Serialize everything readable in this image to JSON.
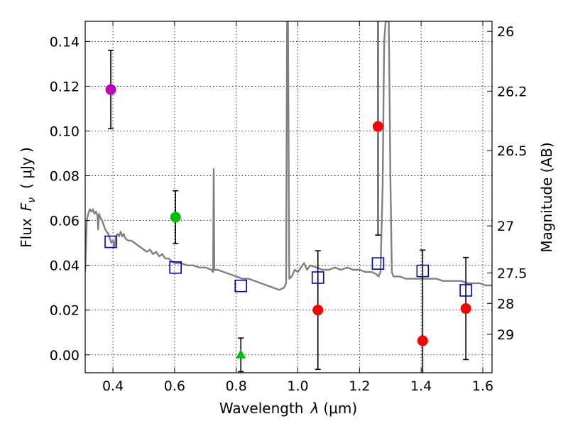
{
  "chart_data": {
    "type": "scatter",
    "xlabel_prefix": "Wavelength",
    "xlabel_symbol": "λ",
    "xlabel_unit": "(μm)",
    "ylabel_prefix": "Flux",
    "ylabel_symbol": "F",
    "ylabel_subscript": "ν",
    "ylabel_unit": "( μJy )",
    "y2label": "Magnitude (AB)",
    "xlim": [
      0.31,
      1.63
    ],
    "ylim": [
      -0.008,
      0.149
    ],
    "grid": true,
    "x_ticks": [
      0.4,
      0.6,
      0.8,
      1.0,
      1.2,
      1.4,
      1.6
    ],
    "x_tick_labels": [
      "0.4",
      "0.6",
      "0.8",
      "1.0",
      "1.2",
      "1.4",
      "1.6"
    ],
    "y_ticks": [
      0.0,
      0.02,
      0.04,
      0.06,
      0.08,
      0.1,
      0.12,
      0.14
    ],
    "y_tick_labels": [
      "0.00",
      "0.02",
      "0.04",
      "0.06",
      "0.08",
      "0.10",
      "0.12",
      "0.14"
    ],
    "y2_ticks": [
      {
        "flux": 0.1445,
        "label": "26"
      },
      {
        "flux": 0.1178,
        "label": "26.2"
      },
      {
        "flux": 0.0912,
        "label": "26.5"
      },
      {
        "flux": 0.0576,
        "label": "27"
      },
      {
        "flux": 0.0366,
        "label": "27.5"
      },
      {
        "flux": 0.023,
        "label": "28"
      },
      {
        "flux": 0.0092,
        "label": "29"
      }
    ],
    "observations": [
      {
        "x": 0.393,
        "y": 0.1185,
        "err": 0.0175,
        "color": "#bf00bf",
        "marker": "circle"
      },
      {
        "x": 0.603,
        "y": 0.0615,
        "err": 0.0118,
        "color": "#00bf00",
        "marker": "circle"
      },
      {
        "x": 0.815,
        "y": 0.0,
        "err": 0.0075,
        "color": "#00bf00",
        "marker": "triangle"
      },
      {
        "x": 1.065,
        "y": 0.02,
        "err": 0.0265,
        "color": "#ff0000",
        "marker": "circle"
      },
      {
        "x": 1.26,
        "y": 0.102,
        "err": 0.0485,
        "color": "#ff0000",
        "marker": "circle"
      },
      {
        "x": 1.405,
        "y": 0.0063,
        "err": 0.0405,
        "color": "#ff0000",
        "marker": "circle"
      },
      {
        "x": 1.545,
        "y": 0.0207,
        "err": 0.0228,
        "color": "#ff0000",
        "marker": "circle"
      }
    ],
    "model_photometry": [
      {
        "x": 0.393,
        "y": 0.0505
      },
      {
        "x": 0.603,
        "y": 0.039
      },
      {
        "x": 0.815,
        "y": 0.0308
      },
      {
        "x": 1.065,
        "y": 0.0345
      },
      {
        "x": 1.26,
        "y": 0.0408
      },
      {
        "x": 1.405,
        "y": 0.0375
      },
      {
        "x": 1.545,
        "y": 0.0288
      }
    ],
    "model_spectrum": {
      "color": "#808080",
      "points": [
        [
          0.31,
          0.037
        ],
        [
          0.315,
          0.06
        ],
        [
          0.32,
          0.063
        ],
        [
          0.325,
          0.065
        ],
        [
          0.33,
          0.064
        ],
        [
          0.335,
          0.065
        ],
        [
          0.34,
          0.063
        ],
        [
          0.345,
          0.064
        ],
        [
          0.35,
          0.062
        ],
        [
          0.352,
          0.056
        ],
        [
          0.355,
          0.063
        ],
        [
          0.36,
          0.061
        ],
        [
          0.365,
          0.06
        ],
        [
          0.37,
          0.058
        ],
        [
          0.375,
          0.056
        ],
        [
          0.38,
          0.055
        ],
        [
          0.385,
          0.054
        ],
        [
          0.39,
          0.052
        ],
        [
          0.395,
          0.05
        ],
        [
          0.4,
          0.051
        ],
        [
          0.405,
          0.048
        ],
        [
          0.41,
          0.053
        ],
        [
          0.415,
          0.054
        ],
        [
          0.42,
          0.053
        ],
        [
          0.425,
          0.055
        ],
        [
          0.43,
          0.053
        ],
        [
          0.435,
          0.054
        ],
        [
          0.44,
          0.052
        ],
        [
          0.45,
          0.051
        ],
        [
          0.46,
          0.051
        ],
        [
          0.47,
          0.05
        ],
        [
          0.48,
          0.049
        ],
        [
          0.49,
          0.048
        ],
        [
          0.5,
          0.047
        ],
        [
          0.51,
          0.046
        ],
        [
          0.52,
          0.047
        ],
        [
          0.53,
          0.045
        ],
        [
          0.54,
          0.046
        ],
        [
          0.55,
          0.044
        ],
        [
          0.56,
          0.045
        ],
        [
          0.57,
          0.043
        ],
        [
          0.58,
          0.043
        ],
        [
          0.59,
          0.042
        ],
        [
          0.6,
          0.041
        ],
        [
          0.62,
          0.041
        ],
        [
          0.64,
          0.04
        ],
        [
          0.66,
          0.04
        ],
        [
          0.68,
          0.039
        ],
        [
          0.7,
          0.039
        ],
        [
          0.72,
          0.038
        ],
        [
          0.725,
          0.037
        ],
        [
          0.727,
          0.083
        ],
        [
          0.729,
          0.038
        ],
        [
          0.74,
          0.038
        ],
        [
          0.76,
          0.037
        ],
        [
          0.78,
          0.036
        ],
        [
          0.8,
          0.035
        ],
        [
          0.82,
          0.034
        ],
        [
          0.84,
          0.034
        ],
        [
          0.86,
          0.033
        ],
        [
          0.88,
          0.032
        ],
        [
          0.9,
          0.031
        ],
        [
          0.92,
          0.03
        ],
        [
          0.94,
          0.029
        ],
        [
          0.955,
          0.03
        ],
        [
          0.962,
          0.032
        ],
        [
          0.965,
          0.149
        ],
        [
          0.968,
          0.149
        ],
        [
          0.972,
          0.034
        ],
        [
          0.98,
          0.035
        ],
        [
          0.99,
          0.038
        ],
        [
          1.0,
          0.037
        ],
        [
          1.01,
          0.039
        ],
        [
          1.02,
          0.041
        ],
        [
          1.03,
          0.038
        ],
        [
          1.04,
          0.04
        ],
        [
          1.06,
          0.039
        ],
        [
          1.08,
          0.038
        ],
        [
          1.1,
          0.038
        ],
        [
          1.12,
          0.039
        ],
        [
          1.14,
          0.038
        ],
        [
          1.16,
          0.039
        ],
        [
          1.18,
          0.038
        ],
        [
          1.2,
          0.038
        ],
        [
          1.22,
          0.037
        ],
        [
          1.24,
          0.037
        ],
        [
          1.255,
          0.036
        ],
        [
          1.262,
          0.035
        ],
        [
          1.268,
          0.037
        ],
        [
          1.275,
          0.075
        ],
        [
          1.28,
          0.14
        ],
        [
          1.285,
          0.149
        ],
        [
          1.29,
          0.149
        ],
        [
          1.295,
          0.149
        ],
        [
          1.3,
          0.08
        ],
        [
          1.305,
          0.037
        ],
        [
          1.31,
          0.035
        ],
        [
          1.33,
          0.035
        ],
        [
          1.35,
          0.034
        ],
        [
          1.37,
          0.034
        ],
        [
          1.39,
          0.034
        ],
        [
          1.41,
          0.034
        ],
        [
          1.43,
          0.034
        ],
        [
          1.45,
          0.034
        ],
        [
          1.47,
          0.033
        ],
        [
          1.49,
          0.033
        ],
        [
          1.51,
          0.033
        ],
        [
          1.53,
          0.033
        ],
        [
          1.55,
          0.032
        ],
        [
          1.57,
          0.032
        ],
        [
          1.59,
          0.032
        ],
        [
          1.61,
          0.031
        ],
        [
          1.63,
          0.031
        ]
      ]
    }
  }
}
